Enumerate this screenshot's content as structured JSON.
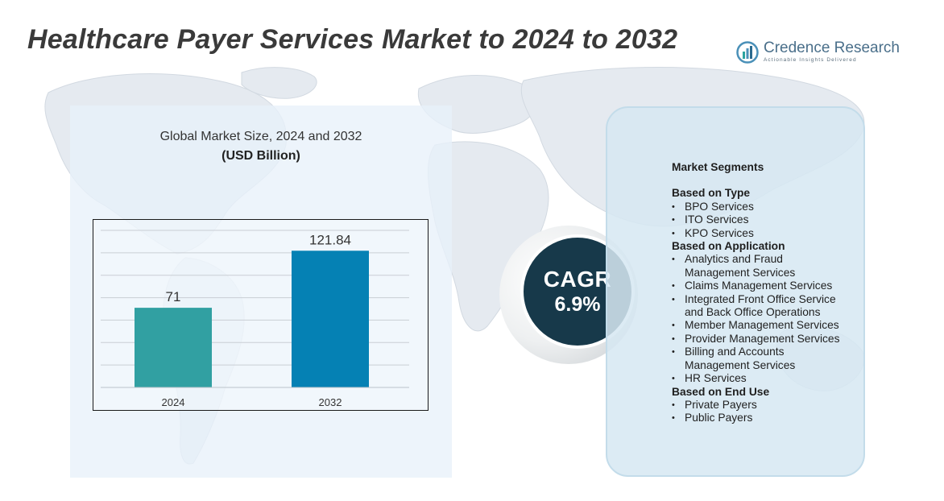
{
  "title": "Healthcare Payer Services Market to 2024 to 2032",
  "brand": {
    "name": "Credence Research",
    "tagline": "Actionable Insights Delivered",
    "icon": "bar-chart-logo-icon"
  },
  "chart_data": {
    "type": "bar",
    "title": "Global Market Size, 2024 and 2032",
    "subtitle": "(USD Billion)",
    "categories": [
      "2024",
      "2032"
    ],
    "values": [
      71,
      121.84
    ],
    "value_labels": [
      "71",
      "121.84"
    ],
    "colors": [
      "#31a0a2",
      "#0581b4"
    ],
    "ylim": [
      0,
      140
    ],
    "grid": true,
    "legend": "none"
  },
  "cagr": {
    "label": "CAGR",
    "value": "6.9%"
  },
  "segments": {
    "heading": "Market Segments",
    "groups": [
      {
        "title": "Based on Type",
        "items": [
          "BPO Services",
          "ITO Services",
          "KPO Services"
        ]
      },
      {
        "title": "Based on Application",
        "items": [
          [
            "Analytics and Fraud",
            "Management Services"
          ],
          [
            "Claims Management Services"
          ],
          [
            "Integrated Front Office Service",
            "and Back Office Operations"
          ],
          [
            "Member Management Services"
          ],
          [
            "Provider Management Services"
          ],
          [
            "Billing and Accounts",
            "Management Services"
          ],
          [
            "HR Services"
          ]
        ]
      },
      {
        "title": "Based on End Use",
        "items": [
          "Private Payers",
          "Public Payers"
        ]
      }
    ]
  },
  "colors": {
    "title": "#3a3a3a",
    "cagr_circle": "#17394a",
    "chart_panel": "#e8f1fa",
    "segment_panel": "#d6e8f2",
    "map": "#e4e9ee"
  }
}
